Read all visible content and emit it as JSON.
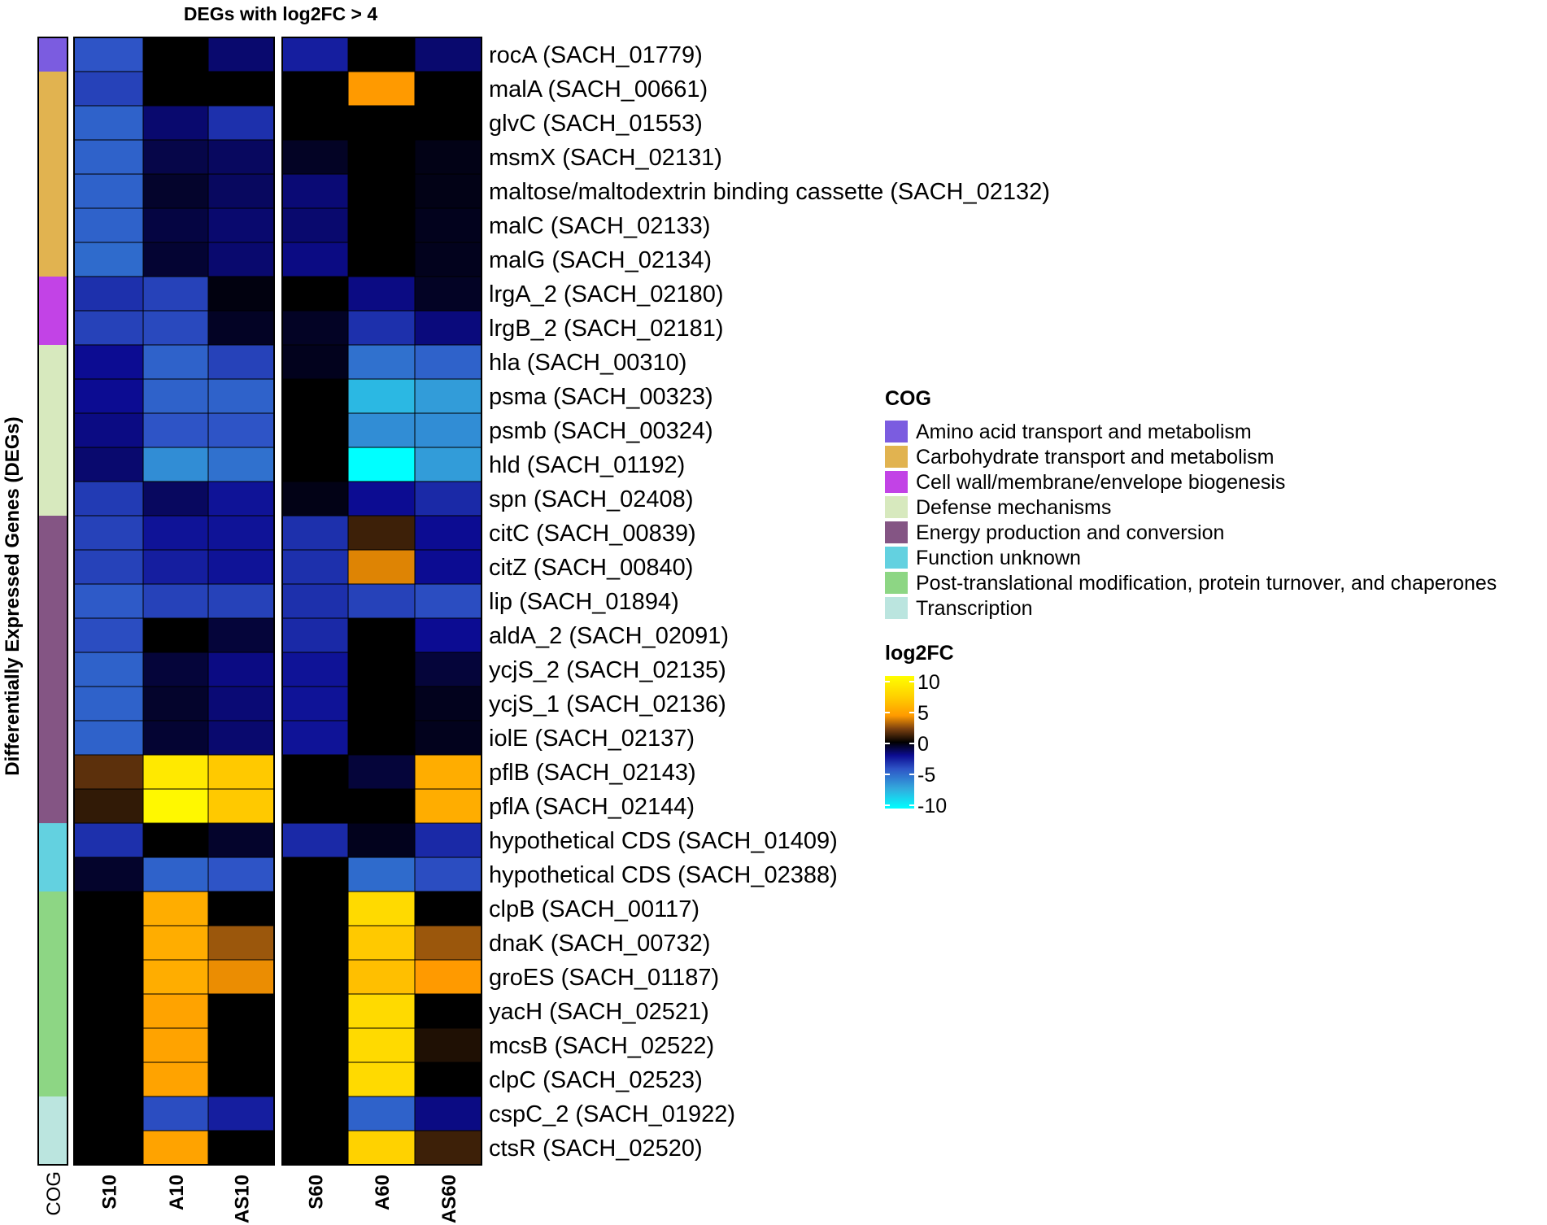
{
  "chart_data": {
    "type": "heatmap",
    "title": "DEGs with log2FC > 4",
    "ylabel": "Differentially Expressed Genes (DEGs)",
    "cog_axis_label": "COG",
    "groups": [
      [
        "S10",
        "A10",
        "AS10"
      ],
      [
        "S60",
        "A60",
        "AS60"
      ]
    ],
    "columns": [
      "S10",
      "A10",
      "AS10",
      "S60",
      "A60",
      "AS60"
    ],
    "color_scale": {
      "title": "log2FC",
      "range": [
        -10,
        10
      ],
      "ticks": [
        "10",
        "5",
        "0",
        "-5",
        "-10"
      ],
      "tick_values": [
        10,
        5,
        0,
        -5,
        -10
      ],
      "stops": [
        {
          "v": -10,
          "color": "#00ffff"
        },
        {
          "v": -7,
          "color": "#33aadd"
        },
        {
          "v": -4,
          "color": "#2e54c6"
        },
        {
          "v": -2,
          "color": "#0c0c92"
        },
        {
          "v": 0,
          "color": "#000000"
        },
        {
          "v": 2,
          "color": "#7a4010"
        },
        {
          "v": 4,
          "color": "#ff9a00"
        },
        {
          "v": 7,
          "color": "#ffd200"
        },
        {
          "v": 10,
          "color": "#ffff00"
        }
      ]
    },
    "cog_legend": {
      "title": "COG",
      "categories": [
        {
          "label": "Amino acid transport and metabolism",
          "color": "#7b5ce0"
        },
        {
          "label": "Carbohydrate transport and metabolism",
          "color": "#e1b350"
        },
        {
          "label": "Cell wall/membrane/envelope biogenesis",
          "color": "#c243e6"
        },
        {
          "label": "Defense mechanisms",
          "color": "#d7e9be"
        },
        {
          "label": "Energy production and conversion",
          "color": "#845584"
        },
        {
          "label": "Function unknown",
          "color": "#63d1e0"
        },
        {
          "label": "Post-translational modification, protein turnover, and chaperones",
          "color": "#8dd684"
        },
        {
          "label": "Transcription",
          "color": "#bbe5df"
        }
      ]
    },
    "rows": [
      {
        "gene": "rocA (SACH_01779)",
        "cog": 0,
        "values": [
          -4,
          0,
          -1.5,
          -2.5,
          0,
          -1.5
        ]
      },
      {
        "gene": "malA (SACH_00661)",
        "cog": 1,
        "values": [
          -3.5,
          0,
          0,
          0,
          4,
          0
        ]
      },
      {
        "gene": "glvC (SACH_01553)",
        "cog": 1,
        "values": [
          -4.5,
          -1.5,
          -3,
          0,
          0,
          0
        ]
      },
      {
        "gene": "msmX (SACH_02131)",
        "cog": 1,
        "values": [
          -4.5,
          -1,
          -1.3,
          -0.5,
          0,
          -0.3
        ]
      },
      {
        "gene": "maltose/maltodextrin binding cassette (SACH_02132)",
        "cog": 1,
        "values": [
          -4.5,
          -0.6,
          -1.3,
          -1.6,
          0,
          -0.3
        ]
      },
      {
        "gene": "malC (SACH_02133)",
        "cog": 1,
        "values": [
          -4.5,
          -0.9,
          -1.5,
          -1.5,
          0,
          -0.4
        ]
      },
      {
        "gene": "malG (SACH_02134)",
        "cog": 1,
        "values": [
          -4.8,
          -0.7,
          -1.5,
          -1.8,
          0,
          -0.4
        ]
      },
      {
        "gene": "lrgA_2 (SACH_02180)",
        "cog": 2,
        "values": [
          -3,
          -3.5,
          -0.2,
          0,
          -1.8,
          -0.5
        ]
      },
      {
        "gene": "lrgB_2 (SACH_02181)",
        "cog": 2,
        "values": [
          -3.5,
          -3.7,
          -0.5,
          -0.5,
          -3,
          -1.7
        ]
      },
      {
        "gene": "hla (SACH_00310)",
        "cog": 3,
        "values": [
          -2,
          -4.5,
          -3.5,
          -0.4,
          -5,
          -4.5
        ]
      },
      {
        "gene": "psma (SACH_00323)",
        "cog": 3,
        "values": [
          -2,
          -4.5,
          -4.5,
          0,
          -7.5,
          -6.5
        ]
      },
      {
        "gene": "psmb (SACH_00324)",
        "cog": 3,
        "values": [
          -1.8,
          -4,
          -4,
          0,
          -6,
          -6
        ]
      },
      {
        "gene": "hld (SACH_01192)",
        "cog": 3,
        "values": [
          -1.5,
          -6,
          -5,
          0,
          -10,
          -6.5
        ]
      },
      {
        "gene": "spn (SACH_02408)",
        "cog": 3,
        "values": [
          -3.3,
          -1.3,
          -2.2,
          -0.3,
          -2,
          -2.8
        ]
      },
      {
        "gene": "citC (SACH_00839)",
        "cog": 4,
        "values": [
          -3.5,
          -2.2,
          -2.2,
          -3,
          1,
          -2
        ]
      },
      {
        "gene": "citZ (SACH_00840)",
        "cog": 4,
        "values": [
          -3.5,
          -2.5,
          -2.2,
          -3,
          3.5,
          -2
        ]
      },
      {
        "gene": "lip (SACH_01894)",
        "cog": 4,
        "values": [
          -4.2,
          -3.5,
          -3.5,
          -3,
          -3.5,
          -3.8
        ]
      },
      {
        "gene": "aldA_2 (SACH_02091)",
        "cog": 4,
        "values": [
          -3.8,
          0,
          -0.8,
          -2.8,
          0,
          -2
        ]
      },
      {
        "gene": "ycjS_2 (SACH_02135)",
        "cog": 4,
        "values": [
          -4.5,
          -0.8,
          -1.8,
          -2.2,
          0,
          -0.8
        ]
      },
      {
        "gene": "ycjS_1 (SACH_02136)",
        "cog": 4,
        "values": [
          -4.5,
          -0.6,
          -1.6,
          -2.2,
          0,
          -0.4
        ]
      },
      {
        "gene": "iolE (SACH_02137)",
        "cog": 4,
        "values": [
          -4.5,
          -0.7,
          -1.5,
          -2.2,
          0,
          -0.4
        ]
      },
      {
        "gene": "pflB (SACH_02143)",
        "cog": 4,
        "values": [
          1.5,
          8.5,
          6.5,
          0,
          -0.8,
          5
        ]
      },
      {
        "gene": "pflA (SACH_02144)",
        "cog": 4,
        "values": [
          0.8,
          9.5,
          6.5,
          0,
          0,
          5
        ]
      },
      {
        "gene": "hypothetical CDS (SACH_01409)",
        "cog": 5,
        "values": [
          -3,
          0,
          -0.6,
          -2.8,
          -0.4,
          -2.8
        ]
      },
      {
        "gene": "hypothetical CDS (SACH_02388)",
        "cog": 5,
        "values": [
          -0.6,
          -4.5,
          -4,
          0,
          -4.8,
          -3.8
        ]
      },
      {
        "gene": "clpB (SACH_00117)",
        "cog": 6,
        "values": [
          0,
          5,
          0,
          0,
          7.5,
          0
        ]
      },
      {
        "gene": "dnaK (SACH_00732)",
        "cog": 6,
        "values": [
          0,
          5,
          2.5,
          0,
          6.5,
          2.5
        ]
      },
      {
        "gene": "groES (SACH_01187)",
        "cog": 6,
        "values": [
          0,
          5,
          3.7,
          0,
          6,
          4
        ]
      },
      {
        "gene": "yacH (SACH_02521)",
        "cog": 6,
        "values": [
          0,
          4.5,
          0,
          0,
          7.5,
          0
        ]
      },
      {
        "gene": "mcsB (SACH_02522)",
        "cog": 6,
        "values": [
          0,
          4.5,
          0,
          0,
          7.5,
          0.5
        ]
      },
      {
        "gene": "clpC (SACH_02523)",
        "cog": 6,
        "values": [
          0,
          4.5,
          0,
          0,
          7.5,
          0
        ]
      },
      {
        "gene": "cspC_2 (SACH_01922)",
        "cog": 7,
        "values": [
          0,
          -3.8,
          -2.5,
          0,
          -4.5,
          -1.8
        ]
      },
      {
        "gene": "ctsR (SACH_02520)",
        "cog": 7,
        "values": [
          0,
          4.5,
          0,
          0,
          7,
          1
        ]
      }
    ]
  }
}
